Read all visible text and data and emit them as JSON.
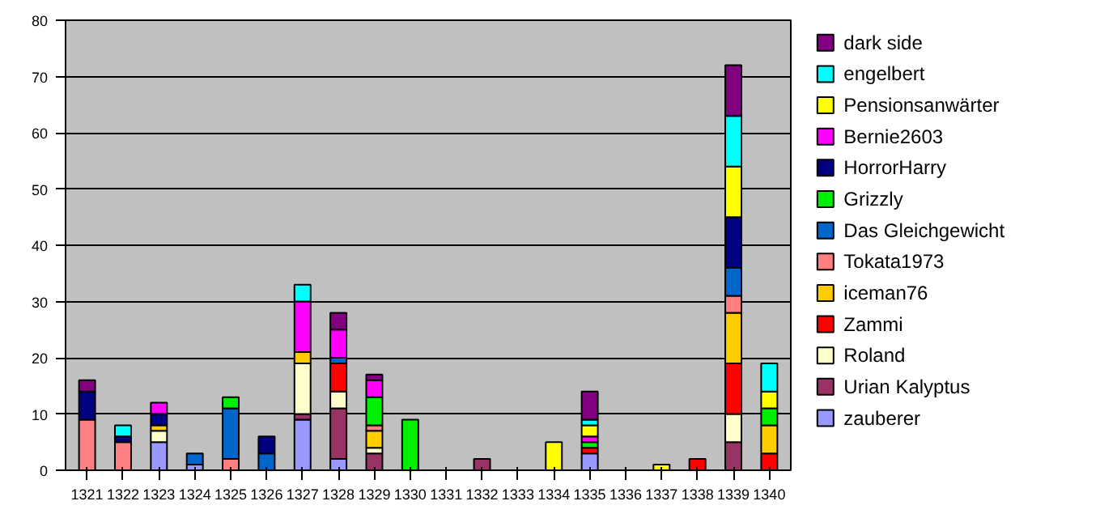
{
  "chart_data": {
    "type": "bar",
    "stacked": true,
    "categories": [
      "1321",
      "1322",
      "1323",
      "1324",
      "1325",
      "1326",
      "1327",
      "1328",
      "1329",
      "1330",
      "1331",
      "1332",
      "1333",
      "1334",
      "1335",
      "1336",
      "1337",
      "1338",
      "1339",
      "1340"
    ],
    "ylim": [
      0,
      80
    ],
    "yticks": [
      0,
      10,
      20,
      30,
      40,
      50,
      60,
      70,
      80
    ],
    "grid": "y",
    "legend": "right",
    "series": [
      {
        "name": "zauberer",
        "color": "#9999ff",
        "values": [
          null,
          null,
          5,
          1,
          null,
          null,
          9,
          2,
          null,
          null,
          null,
          null,
          null,
          null,
          3,
          null,
          null,
          null,
          null,
          null
        ]
      },
      {
        "name": "Urian Kalyptus",
        "color": "#993366",
        "values": [
          null,
          null,
          null,
          null,
          null,
          null,
          1,
          9,
          3,
          null,
          null,
          2,
          null,
          null,
          null,
          null,
          null,
          null,
          5,
          null
        ]
      },
      {
        "name": "Roland",
        "color": "#ffffcc",
        "values": [
          null,
          null,
          2,
          null,
          null,
          null,
          9,
          3,
          1,
          null,
          null,
          null,
          null,
          null,
          null,
          null,
          null,
          null,
          5,
          null
        ]
      },
      {
        "name": "Zammi",
        "color": "#ff0000",
        "values": [
          null,
          null,
          null,
          null,
          null,
          null,
          null,
          5,
          null,
          null,
          null,
          null,
          null,
          null,
          1,
          null,
          null,
          2,
          9,
          3
        ]
      },
      {
        "name": "iceman76",
        "color": "#ffcc00",
        "values": [
          null,
          null,
          1,
          null,
          null,
          null,
          2,
          null,
          3,
          null,
          null,
          null,
          null,
          null,
          null,
          null,
          null,
          null,
          9,
          5
        ]
      },
      {
        "name": "Tokata1973",
        "color": "#ff8080",
        "values": [
          9,
          5,
          null,
          null,
          2,
          null,
          null,
          null,
          1,
          null,
          null,
          null,
          null,
          null,
          null,
          null,
          null,
          null,
          3,
          null
        ]
      },
      {
        "name": "Das Gleichgewicht",
        "color": "#0066cc",
        "values": [
          null,
          null,
          null,
          2,
          9,
          3,
          null,
          1,
          null,
          null,
          null,
          null,
          null,
          null,
          null,
          null,
          null,
          null,
          5,
          null
        ]
      },
      {
        "name": "Grizzly",
        "color": "#00ee00",
        "values": [
          null,
          null,
          null,
          null,
          2,
          null,
          null,
          null,
          5,
          9,
          null,
          null,
          null,
          null,
          1,
          null,
          null,
          null,
          null,
          3
        ]
      },
      {
        "name": "HorrorHarry",
        "color": "#000080",
        "values": [
          5,
          1,
          2,
          null,
          null,
          3,
          null,
          null,
          null,
          null,
          null,
          null,
          null,
          null,
          null,
          null,
          null,
          null,
          9,
          null
        ]
      },
      {
        "name": "Bernie2603",
        "color": "#ff00ff",
        "values": [
          null,
          null,
          2,
          null,
          null,
          null,
          9,
          5,
          3,
          null,
          null,
          null,
          null,
          null,
          1,
          null,
          null,
          null,
          null,
          null
        ]
      },
      {
        "name": "Pensionsanwärter",
        "color": "#ffff00",
        "values": [
          null,
          null,
          null,
          null,
          null,
          null,
          null,
          null,
          null,
          null,
          null,
          null,
          null,
          5,
          2,
          null,
          1,
          null,
          9,
          3
        ]
      },
      {
        "name": "engelbert",
        "color": "#00ffff",
        "values": [
          null,
          2,
          null,
          null,
          null,
          null,
          3,
          null,
          null,
          null,
          null,
          null,
          null,
          null,
          1,
          null,
          null,
          null,
          9,
          5
        ]
      },
      {
        "name": "dark side",
        "color": "#800080",
        "values": [
          2,
          null,
          null,
          null,
          null,
          null,
          null,
          3,
          1,
          null,
          null,
          null,
          null,
          null,
          5,
          null,
          null,
          null,
          9,
          null
        ]
      }
    ]
  }
}
